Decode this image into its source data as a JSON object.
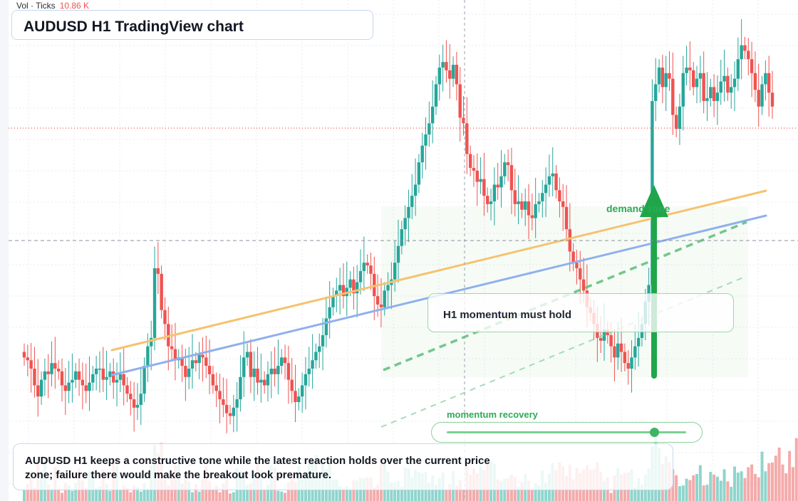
{
  "header": {
    "volume_label": "Vol · Ticks",
    "volume_value": "10.86 K"
  },
  "title": "AUDUSD H1 TradingView chart",
  "annotations": {
    "callout": "H1 momentum must hold",
    "zone_label": "demand zone",
    "slider_label": "momentum recovery",
    "slider_value": 0.86,
    "note": "AUDUSD H1 keeps a constructive tone while the latest reaction holds over the current price zone; failure there would make the breakout look premature."
  },
  "colors": {
    "bull": "#26a69a",
    "bear": "#ef5350",
    "bull_volume": "#8fd5cc",
    "bear_volume": "#f4aaaa",
    "trendline_orange": "#f6c26e",
    "trendline_blue": "#8fb0ee",
    "accent_green": "#2daa57",
    "grid": "#e8ebf0"
  },
  "chart_data": {
    "type": "candlestick",
    "instrument": "AUDUSD",
    "timeframe": "H1",
    "grid": true,
    "ohlc_close": [
      48,
      47,
      44,
      38,
      34,
      40,
      43,
      42,
      46,
      44,
      43,
      38,
      36,
      39,
      40,
      43,
      40,
      38,
      36,
      39,
      42,
      44,
      44,
      40,
      41,
      43,
      39,
      40,
      42,
      38,
      35,
      33,
      30,
      31,
      35,
      45,
      52,
      55,
      80,
      78,
      65,
      60,
      52,
      51,
      47,
      48,
      45,
      41,
      44,
      47,
      46,
      49,
      48,
      45,
      42,
      38,
      36,
      33,
      31,
      28,
      27,
      30,
      33,
      41,
      48,
      50,
      41,
      44,
      39,
      40,
      38,
      42,
      44,
      42,
      45,
      48,
      46,
      40,
      36,
      32,
      34,
      38,
      42,
      44,
      47,
      50,
      52,
      56,
      62,
      66,
      70,
      72,
      74,
      70,
      73,
      76,
      71,
      75,
      79,
      82,
      81,
      78,
      70,
      67,
      66,
      72,
      74,
      76,
      82,
      88,
      94,
      98,
      102,
      106,
      110,
      118,
      124,
      128,
      132,
      138,
      146,
      152,
      154,
      151,
      148,
      153,
      146,
      134,
      132,
      121,
      116,
      115,
      111,
      112,
      106,
      103,
      104,
      110,
      109,
      113,
      118,
      117,
      108,
      103,
      104,
      101,
      104,
      99,
      98,
      103,
      104,
      107,
      110,
      113,
      114,
      108,
      104,
      102,
      94,
      86,
      82,
      80,
      76,
      72,
      66,
      64,
      60,
      55,
      54,
      58,
      56,
      52,
      48,
      53,
      50,
      46,
      44,
      48,
      52,
      55,
      60,
      68,
      74,
      140,
      146,
      152,
      145,
      150,
      148,
      135,
      130,
      138,
      150,
      152,
      151,
      145,
      148,
      150,
      140,
      141,
      145,
      140,
      143,
      147,
      149,
      143,
      145,
      148,
      155,
      160,
      158,
      155,
      150,
      144,
      138,
      146,
      150,
      143,
      138
    ],
    "volume_relative": [
      0.16,
      0.25,
      0.44,
      0.19,
      0.64,
      0.45,
      0.62,
      0.24,
      0.18,
      0.51,
      0.18,
      0.12,
      0.27,
      0.23,
      0.15,
      0.27,
      0.48,
      0.3,
      0.19,
      0.44,
      0.36,
      0.19,
      0.22,
      0.46,
      0.25,
      0.15,
      0.64,
      0.52,
      0.16,
      0.23,
      0.2,
      0.13,
      0.23,
      0.2,
      0.14,
      0.27,
      0.18,
      0.52,
      0.83,
      0.7,
      0.86,
      0.32,
      0.23,
      0.38,
      0.53,
      0.55,
      0.26,
      0.4,
      0.29,
      0.13,
      0.25,
      0.14,
      0.32,
      0.52,
      0.3,
      0.18,
      0.23,
      0.13,
      0.26,
      0.32,
      0.11,
      0.13,
      0.49,
      0.43,
      0.41,
      0.24,
      0.26,
      0.44,
      0.54,
      0.45,
      0.17,
      0.24,
      0.53,
      0.49,
      0.15,
      0.14,
      0.12,
      0.28,
      0.37,
      0.28,
      0.52,
      0.32,
      0.42,
      0.58,
      0.59,
      0.68,
      0.37,
      0.6,
      0.47,
      0.62,
      0.31,
      0.32,
      0.22,
      0.18,
      0.22,
      0.16,
      0.31,
      0.3,
      0.34,
      0.34,
      0.35,
      0.35,
      0.2,
      0.24,
      0.62,
      0.55,
      0.43,
      0.28,
      0.28,
      0.3,
      0.21,
      0.49,
      0.48,
      0.35,
      0.46,
      0.43,
      0.41,
      0.43,
      0.27,
      0.38,
      0.24,
      0.34,
      0.42,
      0.16,
      0.25,
      0.44,
      0.23,
      0.31,
      0.17,
      0.58,
      0.39,
      0.48,
      0.41,
      0.52,
      0.46,
      0.55,
      0.58,
      0.55,
      0.32,
      0.29,
      0.33,
      0.34,
      0.39,
      0.36,
      0.21,
      0.28,
      0.4,
      0.3,
      0.16,
      0.26,
      0.23,
      0.45,
      0.27,
      0.4,
      0.56,
      0.46,
      0.57,
      0.51,
      0.37,
      0.54,
      0.32,
      0.49,
      0.41,
      0.47,
      0.53,
      0.46,
      0.47,
      0.57,
      0.43,
      0.3,
      0.35,
      0.12,
      0.38,
      0.49,
      0.39,
      0.42,
      0.42,
      0.47,
      0.2,
      0.34,
      0.24,
      0.39,
      0.48,
      0.81,
      0.99,
      0.78,
      0.55,
      0.66,
      0.57,
      0.47,
      0.38,
      0.22,
      0.23,
      0.33,
      0.31,
      0.38,
      0.4,
      0.53,
      0.23,
      0.24,
      0.43,
      0.39,
      0.36,
      0.3,
      0.47,
      0.29,
      0.21,
      0.51,
      0.42,
      0.44,
      0.34,
      0.5,
      0.54,
      0.4,
      0.35,
      0.73,
      0.44,
      0.56,
      0.57,
      0.67,
      0.79,
      0.54,
      0.41,
      0.74,
      0.5,
      0.93,
      0.39
    ]
  }
}
